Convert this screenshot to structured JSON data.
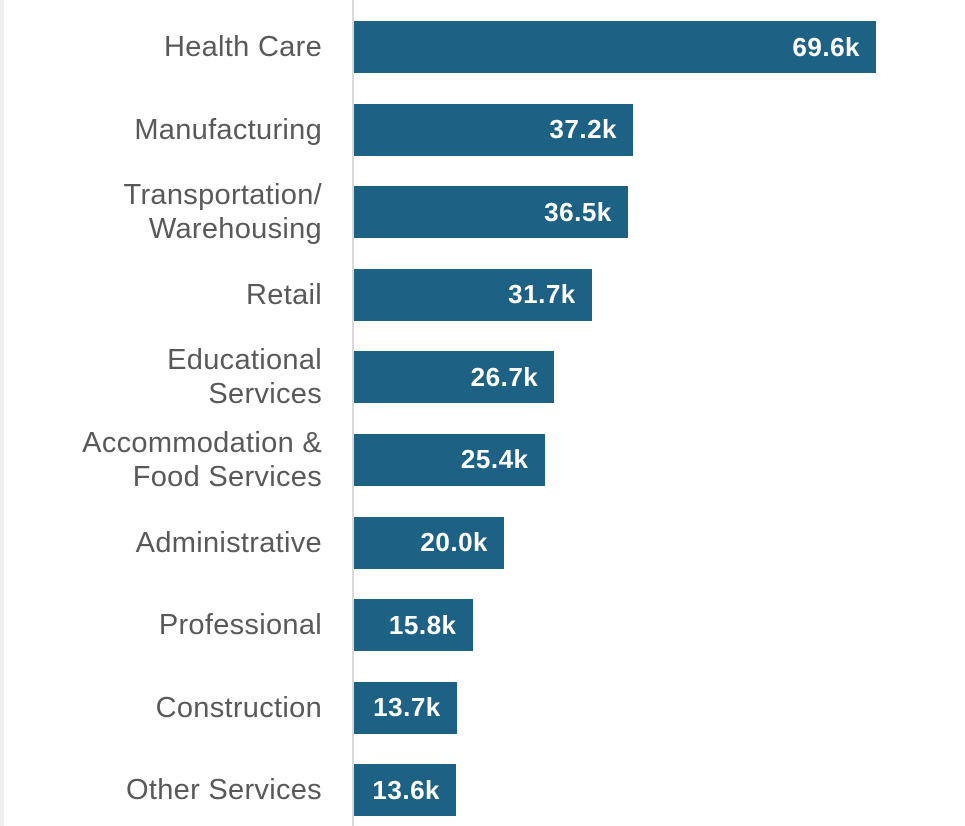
{
  "chart_data": {
    "type": "bar",
    "orientation": "horizontal",
    "title": "",
    "xlabel": "",
    "ylabel": "",
    "grid": false,
    "legend": false,
    "xlim": [
      0,
      81.5
    ],
    "categories": [
      "Health Care",
      "Manufacturing",
      "Transportation/Warehousing",
      "Retail",
      "Educational Services",
      "Accommodation & Food Services",
      "Administrative",
      "Professional",
      "Construction",
      "Other Services"
    ],
    "label_lines": [
      [
        "Health Care"
      ],
      [
        "Manufacturing"
      ],
      [
        "Transportation/",
        "Warehousing"
      ],
      [
        "Retail"
      ],
      [
        "Educational",
        "Services"
      ],
      [
        "Accommodation &",
        "Food Services"
      ],
      [
        "Administrative"
      ],
      [
        "Professional"
      ],
      [
        "Construction"
      ],
      [
        "Other Services"
      ]
    ],
    "values": [
      69.6,
      37.2,
      36.5,
      31.7,
      26.7,
      25.4,
      20.0,
      15.8,
      13.7,
      13.6
    ],
    "value_labels": [
      "69.6k",
      "37.2k",
      "36.5k",
      "31.7k",
      "26.7k",
      "25.4k",
      "20.0k",
      "15.8k",
      "13.7k",
      "13.6k"
    ],
    "unit": "k",
    "colors": {
      "bar": "#1d6185",
      "label_text": "#595959",
      "value_text": "#ffffff",
      "axis_line": "#d9d9d9",
      "left_edge": "#f0efef",
      "background": "#ffffff"
    }
  }
}
